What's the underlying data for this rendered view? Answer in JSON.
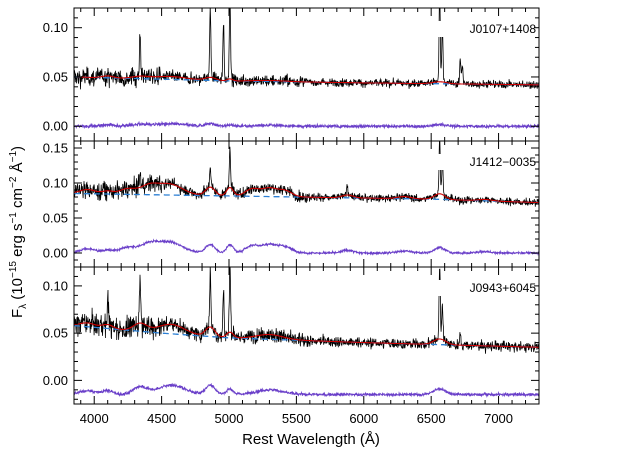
{
  "chart_data": {
    "type": "line",
    "layout": "three vertically stacked panels sharing the x axis",
    "xlabel": "Rest Wavelength (Å)",
    "ylabel_parts": {
      "base": "F",
      "sub": "λ",
      "open": " (10",
      "exp1": "−15",
      "mid1": " erg s",
      "exp2": "−1",
      "mid2": " cm",
      "exp3": "−2",
      "mid3": " Å",
      "exp4": "−1",
      "close": ")"
    },
    "xlim": [
      3850,
      7300
    ],
    "xticks": [
      4000,
      4500,
      5000,
      5500,
      6000,
      6500,
      7000
    ],
    "xtick_labels": [
      "4000",
      "4500",
      "5000",
      "5500",
      "6000",
      "6500",
      "7000"
    ],
    "colors": {
      "observed": "#000000",
      "model": "#cc0000",
      "continuum": "#2b7fd4",
      "residual": "#6a3fc9"
    },
    "panels": [
      {
        "label": "J0107+1408",
        "ylim": [
          -0.015,
          0.12
        ],
        "yticks": [
          0.0,
          0.05,
          0.1
        ],
        "ytick_labels": [
          "0.00",
          "0.05",
          "0.10"
        ],
        "continuum": [
          [
            3850,
            0.05
          ],
          [
            5000,
            0.046
          ],
          [
            6000,
            0.044
          ],
          [
            7300,
            0.042
          ]
        ],
        "bumps": [
          [
            4100,
            40,
            0.002
          ],
          [
            4340,
            60,
            0.002
          ],
          [
            4560,
            120,
            0.003
          ],
          [
            4861,
            40,
            0.003
          ],
          [
            5007,
            20,
            0.002
          ],
          [
            5300,
            120,
            0.001
          ],
          [
            6563,
            50,
            0.002
          ]
        ],
        "spikes": [
          [
            4340,
            0.045
          ],
          [
            4861,
            0.07
          ],
          [
            4959,
            0.06
          ],
          [
            5007,
            0.09
          ],
          [
            6563,
            0.09
          ],
          [
            6583,
            0.06
          ],
          [
            6716,
            0.025
          ],
          [
            6731,
            0.02
          ]
        ],
        "noise": 0.006,
        "offset": 0.0,
        "residual_scale": 0.8
      },
      {
        "label": "J1412−0035",
        "ylim": [
          -0.02,
          0.16
        ],
        "yticks": [
          0.0,
          0.05,
          0.1,
          0.15
        ],
        "ytick_labels": [
          "0.00",
          "0.05",
          "0.10",
          "0.15"
        ],
        "continuum": [
          [
            3850,
            0.085
          ],
          [
            4500,
            0.083
          ],
          [
            5500,
            0.08
          ],
          [
            6500,
            0.077
          ],
          [
            7300,
            0.072
          ]
        ],
        "bumps": [
          [
            3950,
            60,
            0.006
          ],
          [
            4100,
            40,
            0.004
          ],
          [
            4250,
            60,
            0.008
          ],
          [
            4400,
            60,
            0.01
          ],
          [
            4550,
            100,
            0.016
          ],
          [
            4861,
            35,
            0.012
          ],
          [
            5007,
            25,
            0.012
          ],
          [
            5170,
            50,
            0.01
          ],
          [
            5300,
            60,
            0.012
          ],
          [
            5420,
            50,
            0.008
          ],
          [
            5880,
            40,
            0.004
          ],
          [
            6300,
            50,
            0.003
          ],
          [
            6563,
            40,
            0.008
          ],
          [
            6900,
            50,
            0.002
          ]
        ],
        "spikes": [
          [
            4340,
            0.02
          ],
          [
            4861,
            0.03
          ],
          [
            5007,
            0.06
          ],
          [
            5876,
            0.015
          ],
          [
            6563,
            0.08
          ],
          [
            6583,
            0.05
          ]
        ],
        "noise": 0.008,
        "offset": 0.0,
        "residual_scale": 1.0
      },
      {
        "label": "J0943+6045",
        "ylim": [
          -0.025,
          0.12
        ],
        "yticks": [
          0.0,
          0.05,
          0.1
        ],
        "ytick_labels": [
          "0.00",
          "0.05",
          "0.10"
        ],
        "continuum": [
          [
            3850,
            0.058
          ],
          [
            4500,
            0.05
          ],
          [
            5000,
            0.045
          ],
          [
            6000,
            0.04
          ],
          [
            7300,
            0.035
          ]
        ],
        "bumps": [
          [
            3950,
            60,
            0.004
          ],
          [
            4100,
            40,
            0.004
          ],
          [
            4340,
            50,
            0.008
          ],
          [
            4570,
            100,
            0.01
          ],
          [
            4861,
            35,
            0.01
          ],
          [
            5007,
            25,
            0.006
          ],
          [
            5300,
            100,
            0.005
          ],
          [
            6563,
            45,
            0.006
          ]
        ],
        "spikes": [
          [
            4102,
            0.03
          ],
          [
            4340,
            0.05
          ],
          [
            4861,
            0.06
          ],
          [
            4959,
            0.05
          ],
          [
            5007,
            0.07
          ],
          [
            6563,
            0.08
          ],
          [
            6583,
            0.04
          ],
          [
            6716,
            0.015
          ]
        ],
        "noise": 0.008,
        "offset": -0.015,
        "residual_scale": 1.0
      }
    ]
  }
}
